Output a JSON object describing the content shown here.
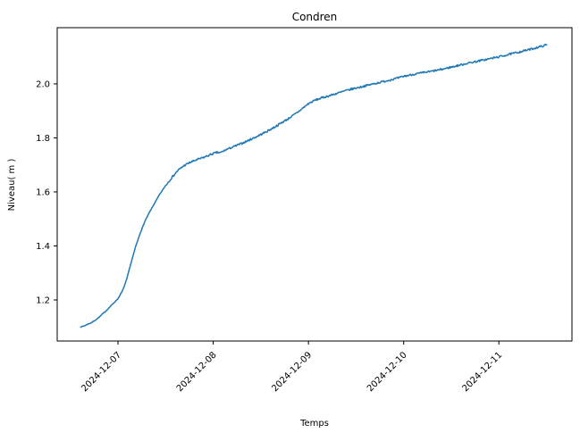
{
  "figure": {
    "background": "#ffffff"
  },
  "chart_data": {
    "type": "line",
    "title": "Condren",
    "xlabel": "Temps",
    "ylabel": "Niveau( m )",
    "grid": false,
    "legend": "none",
    "line": {
      "color": "#1f77b4",
      "width": 1.5
    },
    "x_tick_labels": [
      "2024-12-07",
      "2024-12-08",
      "2024-12-09",
      "2024-12-10",
      "2024-12-11"
    ],
    "y_ticks": [
      1.2,
      1.4,
      1.6,
      1.8,
      2.0
    ],
    "y_tick_labels": [
      "1.2",
      "1.4",
      "1.6",
      "1.8",
      "2.0"
    ],
    "xlim": [
      "2024-12-06T08:40",
      "2024-12-11T18:25"
    ],
    "ylim": [
      1.048,
      2.208
    ],
    "noise": {
      "early": 0.0012,
      "late": 0.0035,
      "change_at": "2024-12-07T12:00"
    },
    "series": [
      {
        "name": "Niveau (m)",
        "points": [
          [
            "2024-12-06T14:35",
            1.1
          ],
          [
            "2024-12-06T15:30",
            1.104
          ],
          [
            "2024-12-06T16:20",
            1.11
          ],
          [
            "2024-12-06T17:10",
            1.115
          ],
          [
            "2024-12-06T18:10",
            1.124
          ],
          [
            "2024-12-06T19:10",
            1.135
          ],
          [
            "2024-12-06T20:00",
            1.147
          ],
          [
            "2024-12-06T21:00",
            1.16
          ],
          [
            "2024-12-06T22:00",
            1.175
          ],
          [
            "2024-12-06T23:00",
            1.19
          ],
          [
            "2024-12-07T00:00",
            1.205
          ],
          [
            "2024-12-07T01:10",
            1.235
          ],
          [
            "2024-12-07T02:15",
            1.28
          ],
          [
            "2024-12-07T03:20",
            1.34
          ],
          [
            "2024-12-07T04:30",
            1.4
          ],
          [
            "2024-12-07T05:40",
            1.45
          ],
          [
            "2024-12-07T06:45",
            1.49
          ],
          [
            "2024-12-07T07:50",
            1.522
          ],
          [
            "2024-12-07T09:00",
            1.552
          ],
          [
            "2024-12-07T10:15",
            1.585
          ],
          [
            "2024-12-07T11:55",
            1.622
          ],
          [
            "2024-12-07T13:30",
            1.652
          ],
          [
            "2024-12-07T15:00",
            1.678
          ],
          [
            "2024-12-07T16:30",
            1.696
          ],
          [
            "2024-12-07T18:00",
            1.708
          ],
          [
            "2024-12-07T19:30",
            1.717
          ],
          [
            "2024-12-07T21:15",
            1.726
          ],
          [
            "2024-12-07T22:40",
            1.734
          ],
          [
            "2024-12-08T00:00",
            1.742
          ],
          [
            "2024-12-08T01:00",
            1.746
          ],
          [
            "2024-12-08T01:50",
            1.745
          ],
          [
            "2024-12-08T03:20",
            1.757
          ],
          [
            "2024-12-08T05:36",
            1.77
          ],
          [
            "2024-12-08T08:04",
            1.785
          ],
          [
            "2024-12-08T10:32",
            1.802
          ],
          [
            "2024-12-08T13:00",
            1.82
          ],
          [
            "2024-12-08T15:28",
            1.84
          ],
          [
            "2024-12-08T17:00",
            1.854
          ],
          [
            "2024-12-08T19:00",
            1.872
          ],
          [
            "2024-12-08T21:00",
            1.892
          ],
          [
            "2024-12-08T23:00",
            1.915
          ],
          [
            "2024-12-09T00:00",
            1.927
          ],
          [
            "2024-12-09T01:45",
            1.94
          ],
          [
            "2024-12-09T03:20",
            1.948
          ],
          [
            "2024-12-09T05:00",
            1.955
          ],
          [
            "2024-12-09T07:00",
            1.964
          ],
          [
            "2024-12-09T09:00",
            1.973
          ],
          [
            "2024-12-09T11:00",
            1.981
          ],
          [
            "2024-12-09T13:00",
            1.988
          ],
          [
            "2024-12-09T15:00",
            1.995
          ],
          [
            "2024-12-09T17:00",
            2.002
          ],
          [
            "2024-12-09T19:00",
            2.009
          ],
          [
            "2024-12-09T21:00",
            2.016
          ],
          [
            "2024-12-09T23:00",
            2.023
          ],
          [
            "2024-12-10T00:00",
            2.028
          ],
          [
            "2024-12-10T02:00",
            2.034
          ],
          [
            "2024-12-10T04:00",
            2.039
          ],
          [
            "2024-12-10T06:00",
            2.044
          ],
          [
            "2024-12-10T08:00",
            2.049
          ],
          [
            "2024-12-10T10:00",
            2.055
          ],
          [
            "2024-12-10T12:00",
            2.062
          ],
          [
            "2024-12-10T14:00",
            2.069
          ],
          [
            "2024-12-10T16:00",
            2.076
          ],
          [
            "2024-12-10T18:00",
            2.082
          ],
          [
            "2024-12-10T20:00",
            2.088
          ],
          [
            "2024-12-10T22:00",
            2.094
          ],
          [
            "2024-12-11T00:00",
            2.1
          ],
          [
            "2024-12-11T02:00",
            2.107
          ],
          [
            "2024-12-11T04:00",
            2.114
          ],
          [
            "2024-12-11T06:00",
            2.121
          ],
          [
            "2024-12-11T08:00",
            2.128
          ],
          [
            "2024-12-11T09:30",
            2.134
          ],
          [
            "2024-12-11T11:00",
            2.14
          ],
          [
            "2024-12-11T12:05",
            2.145
          ]
        ]
      }
    ]
  }
}
